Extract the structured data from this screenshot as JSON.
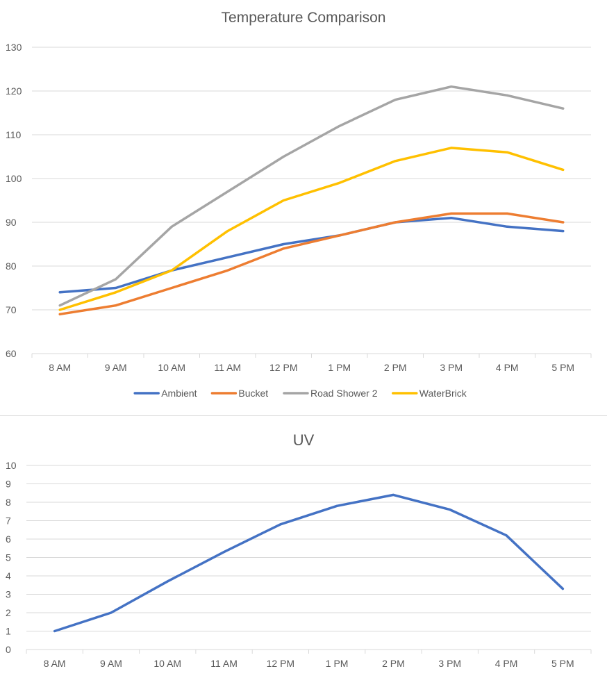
{
  "chart_data": [
    {
      "type": "line",
      "title": "Temperature Comparison",
      "xlabel": "",
      "ylabel": "",
      "categories": [
        "8 AM",
        "9 AM",
        "10 AM",
        "11 AM",
        "12 PM",
        "1 PM",
        "2 PM",
        "3 PM",
        "4 PM",
        "5 PM"
      ],
      "ylim": [
        60,
        130
      ],
      "yticks": [
        60,
        70,
        80,
        90,
        100,
        110,
        120,
        130
      ],
      "grid": true,
      "legend": "bottom",
      "series": [
        {
          "name": "Ambient",
          "color": "#4472c4",
          "values": [
            74,
            75,
            79,
            82,
            85,
            87,
            90,
            91,
            89,
            88
          ]
        },
        {
          "name": "Bucket",
          "color": "#ed7d31",
          "values": [
            69,
            71,
            75,
            79,
            84,
            87,
            90,
            92,
            92,
            90
          ]
        },
        {
          "name": "Road Shower 2",
          "color": "#a5a5a5",
          "values": [
            71,
            77,
            89,
            97,
            105,
            112,
            118,
            121,
            119,
            116
          ]
        },
        {
          "name": "WaterBrick",
          "color": "#ffc000",
          "values": [
            70,
            74,
            79,
            88,
            95,
            99,
            104,
            107,
            106,
            102
          ]
        }
      ]
    },
    {
      "type": "line",
      "title": "UV",
      "xlabel": "",
      "ylabel": "",
      "categories": [
        "8 AM",
        "9 AM",
        "10 AM",
        "11 AM",
        "12 PM",
        "1 PM",
        "2 PM",
        "3 PM",
        "4 PM",
        "5 PM"
      ],
      "ylim": [
        0,
        10
      ],
      "yticks": [
        0,
        1,
        2,
        3,
        4,
        5,
        6,
        7,
        8,
        9,
        10
      ],
      "grid": true,
      "legend": "none",
      "series": [
        {
          "color": "#4472c4",
          "values": [
            1.0,
            2.0,
            3.7,
            5.3,
            6.8,
            7.8,
            8.4,
            7.6,
            6.2,
            3.3
          ]
        }
      ]
    }
  ]
}
